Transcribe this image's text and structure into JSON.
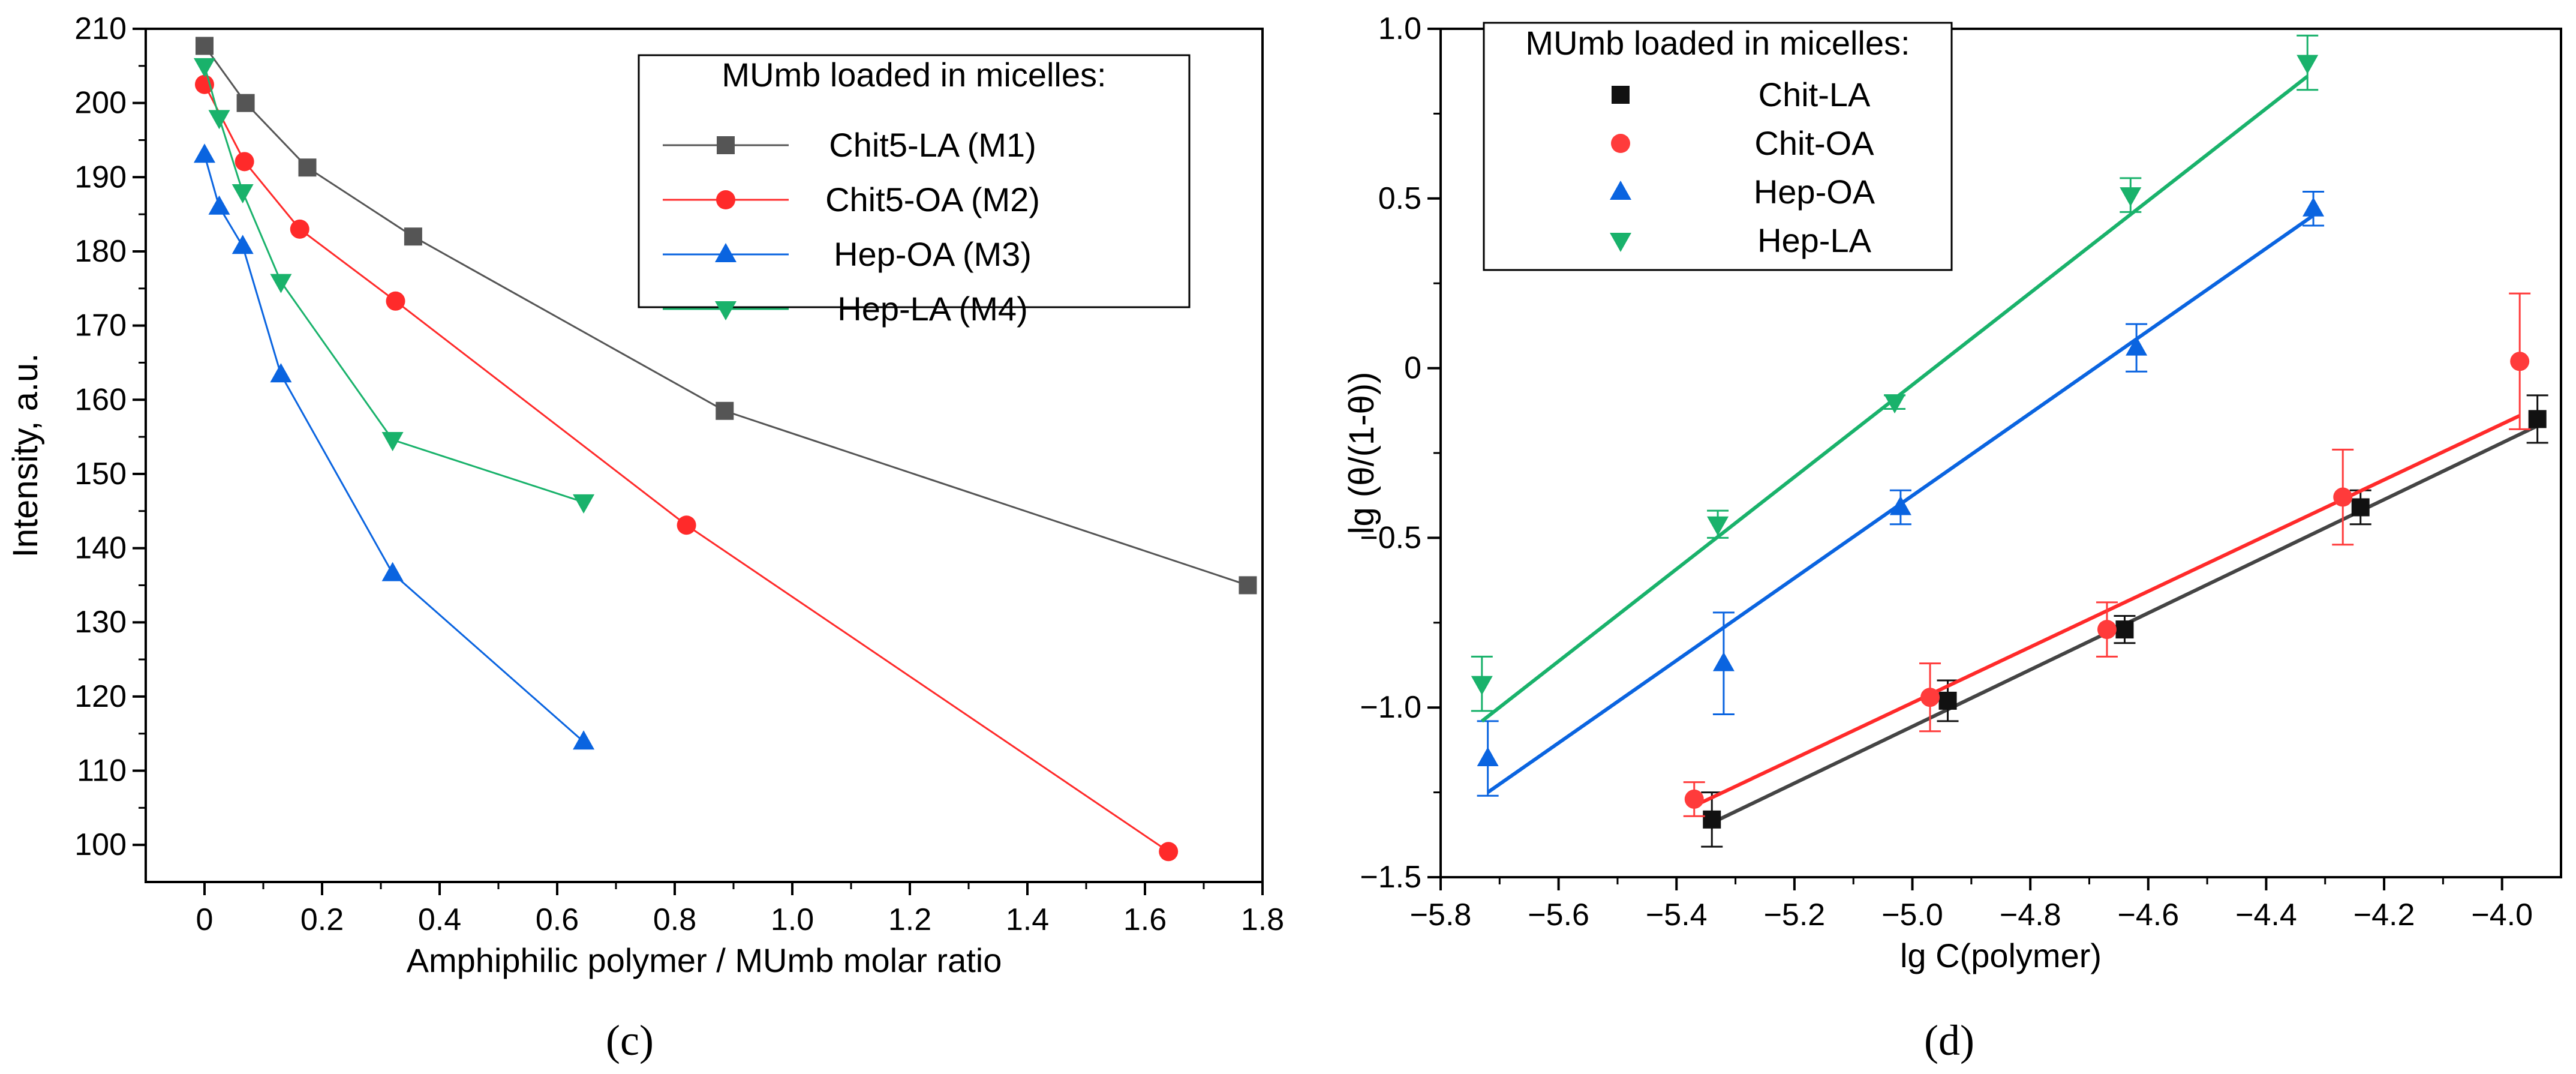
{
  "chart_data": [
    {
      "id": "c",
      "type": "line",
      "panel_label": "(c)",
      "title": "",
      "xlabel": "Amphiphilic polymer / MUmb molar ratio",
      "ylabel": "Intensity, a.u.",
      "xlim": [
        -0.1,
        1.8
      ],
      "ylim": [
        95,
        210
      ],
      "xticks": [
        0,
        0.2,
        0.4,
        0.6,
        0.8,
        1.0,
        1.2,
        1.4,
        1.6,
        1.8
      ],
      "xtick_labels": [
        "0",
        "0.2",
        "0.4",
        "0.6",
        "0.8",
        "1.0",
        "1.2",
        "1.4",
        "1.6",
        "1.8"
      ],
      "yticks": [
        100,
        110,
        120,
        130,
        140,
        150,
        160,
        170,
        180,
        190,
        200,
        210
      ],
      "ytick_labels": [
        "100",
        "110",
        "120",
        "130",
        "140",
        "150",
        "160",
        "170",
        "180",
        "190",
        "200",
        "210"
      ],
      "legend": {
        "title": "MUmb loaded in micelles:",
        "position": "top-right"
      },
      "series": [
        {
          "name": "Chit5-LA (M1)",
          "color": "#555555",
          "marker": "square",
          "x": [
            0,
            0.07,
            0.175,
            0.355,
            0.885,
            1.775
          ],
          "y": [
            207.7,
            200,
            191.3,
            182.0,
            158.5,
            135
          ]
        },
        {
          "name": "Chit5-OA (M2)",
          "color": "#ff2a2a",
          "marker": "circle",
          "x": [
            0,
            0.068,
            0.162,
            0.325,
            0.82,
            1.64
          ],
          "y": [
            202.5,
            192.1,
            183.0,
            173.3,
            143.1,
            99.1
          ]
        },
        {
          "name": "Hep-OA (M3)",
          "color": "#0a64e0",
          "marker": "triangle-up",
          "x": [
            0,
            0.025,
            0.065,
            0.13,
            0.32,
            0.645
          ],
          "y": [
            193.0,
            186.0,
            180.7,
            163.4,
            136.6,
            113.9
          ]
        },
        {
          "name": "Hep-LA (M4)",
          "color": "#19b26b",
          "marker": "triangle-down",
          "x": [
            0,
            0.025,
            0.065,
            0.13,
            0.32,
            0.645
          ],
          "y": [
            205.0,
            198.0,
            188.0,
            175.9,
            154.6,
            146.2
          ]
        }
      ]
    },
    {
      "id": "d",
      "type": "scatter",
      "panel_label": "(d)",
      "title": "",
      "xlabel": "lg C(polymer)",
      "ylabel": "lg (θ/(1-θ))",
      "xlim": [
        -5.8,
        -3.9
      ],
      "ylim": [
        -1.5,
        1.0
      ],
      "xticks": [
        -5.8,
        -5.6,
        -5.4,
        -5.2,
        -5.0,
        -4.8,
        -4.6,
        -4.4,
        -4.2,
        -4.0
      ],
      "xtick_labels": [
        "−5.8",
        "−5.6",
        "−5.4",
        "−5.2",
        "−5.0",
        "−4.8",
        "−4.6",
        "−4.4",
        "−4.2",
        "−4.0"
      ],
      "yticks": [
        -1.5,
        -1.0,
        -0.5,
        0,
        0.5,
        1.0
      ],
      "ytick_labels": [
        "−1.5",
        "−1.0",
        "−0.5",
        "0",
        "0.5",
        "1.0"
      ],
      "legend": {
        "title": "MUmb loaded in micelles:",
        "position": "top-left"
      },
      "series": [
        {
          "name": "Chit-LA",
          "color": "#111111",
          "line_color": "#444444",
          "marker": "square",
          "x": [
            -5.34,
            -4.94,
            -4.64,
            -4.24,
            -3.94
          ],
          "y": [
            -1.33,
            -0.98,
            -0.77,
            -0.41,
            -0.15
          ],
          "err": [
            0.08,
            0.06,
            0.04,
            0.05,
            0.07
          ],
          "fit": {
            "x": [
              -5.34,
              -3.94
            ],
            "y": [
              -1.34,
              -0.17
            ]
          }
        },
        {
          "name": "Chit-OA",
          "color": "#ff3b3b",
          "line_color": "#ff2a2a",
          "marker": "circle",
          "x": [
            -5.37,
            -4.97,
            -4.67,
            -4.27,
            -3.97
          ],
          "y": [
            -1.27,
            -0.97,
            -0.77,
            -0.38,
            0.02
          ],
          "err": [
            0.05,
            0.1,
            0.08,
            0.14,
            0.2
          ],
          "fit": {
            "x": [
              -5.37,
              -3.97
            ],
            "y": [
              -1.29,
              -0.14
            ]
          }
        },
        {
          "name": "Hep-OA",
          "color": "#0a64e0",
          "line_color": "#0a64e0",
          "marker": "triangle-up",
          "x": [
            -5.72,
            -5.32,
            -5.02,
            -4.62,
            -4.32
          ],
          "y": [
            -1.15,
            -0.87,
            -0.41,
            0.06,
            0.47
          ],
          "err": [
            0.11,
            0.15,
            0.05,
            0.07,
            0.05
          ],
          "fit": {
            "x": [
              -5.72,
              -4.32
            ],
            "y": [
              -1.25,
              0.45
            ]
          }
        },
        {
          "name": "Hep-LA",
          "color": "#19b26b",
          "line_color": "#19b26b",
          "marker": "triangle-down",
          "x": [
            -5.73,
            -5.33,
            -5.03,
            -4.63,
            -4.33
          ],
          "y": [
            -0.93,
            -0.46,
            -0.1,
            0.51,
            0.9
          ],
          "err": [
            0.08,
            0.04,
            0.02,
            0.05,
            0.08
          ],
          "fit": {
            "x": [
              -5.73,
              -4.33
            ],
            "y": [
              -1.04,
              0.86
            ]
          }
        }
      ]
    }
  ]
}
